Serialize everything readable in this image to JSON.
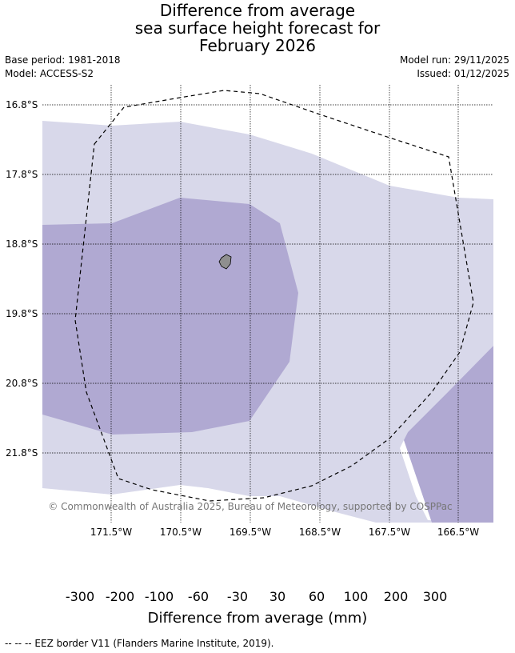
{
  "title": {
    "line1": "Difference from average",
    "line2": "sea surface height forecast for",
    "line3": "February 2026"
  },
  "meta": {
    "base_period": "Base period: 1981-2018",
    "model": "Model: ACCESS-S2",
    "model_run": "Model run: 29/11/2025",
    "issued": "Issued: 01/12/2025"
  },
  "map": {
    "latitude_labels": [
      "16.8°S",
      "17.8°S",
      "18.8°S",
      "19.8°S",
      "20.8°S",
      "21.8°S"
    ],
    "longitude_labels": [
      "171.5°W",
      "170.5°W",
      "169.5°W",
      "168.5°W",
      "167.5°W",
      "166.5°W"
    ],
    "copyright": "© Commonwealth of Australia 2025, Bureau of Meteorology, supported by COSPPac",
    "colors": {
      "class_-100_-60": "#b0a9d2",
      "class_-60_-30": "#d8d8ea",
      "land": "#8f8f8f"
    }
  },
  "colorbar": {
    "tick_labels": [
      "-300",
      "-200",
      "-100",
      "-60",
      "-30",
      "30",
      "60",
      "100",
      "200",
      "300"
    ],
    "colors": [
      "#3f0f6e",
      "#5c2b8f",
      "#8071b1",
      "#b0a9d2",
      "#d8d8ea",
      "#ffffff",
      "#fde0b8",
      "#fbb55f",
      "#e08415",
      "#b35807",
      "#7f3b08"
    ],
    "label": "Difference from average (mm)"
  },
  "footer": "-- -- -- EEZ border V11 (Flanders Marine Institute, 2019)."
}
